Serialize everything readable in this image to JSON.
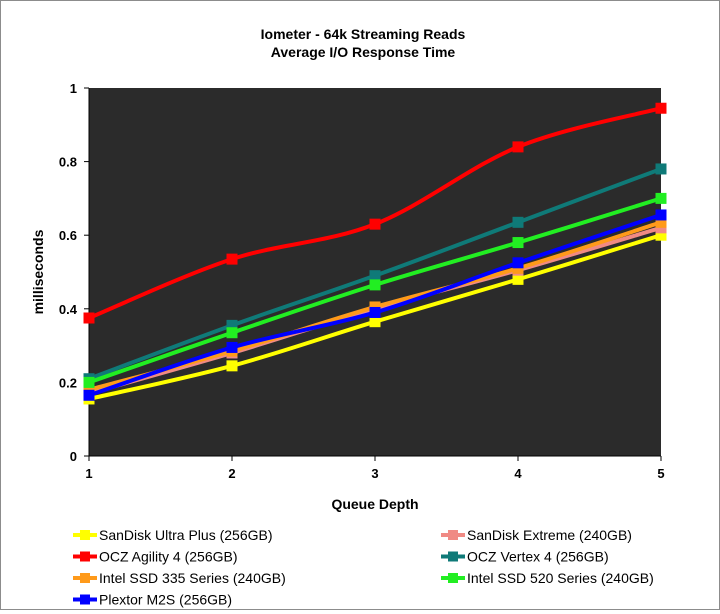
{
  "chart_data": {
    "type": "line",
    "title": [
      "Iometer - 64k  Streaming Reads",
      "Average I/O Response  Time"
    ],
    "xlabel": "Queue Depth",
    "ylabel": "milliseconds",
    "x": [
      1,
      2,
      3,
      4,
      5
    ],
    "x_ticks": [
      "1",
      "2",
      "3",
      "4",
      "5"
    ],
    "ylim": [
      0,
      1
    ],
    "y_ticks": [
      "0",
      "0.2",
      "0.4",
      "0.6",
      "0.8",
      "1"
    ],
    "plot_background": "#2b2b2b",
    "grid": false,
    "legend_position": "bottom",
    "series": [
      {
        "name": "SanDisk Ultra Plus (256GB)",
        "color": "#ffff00",
        "values": [
          0.155,
          0.245,
          0.365,
          0.48,
          0.6
        ]
      },
      {
        "name": "SanDisk Extreme (240GB)",
        "color": "#f08a84",
        "values": [
          0.17,
          0.28,
          0.4,
          0.505,
          0.62
        ]
      },
      {
        "name": "OCZ Agility 4 (256GB)",
        "color": "#ff0000",
        "values": [
          0.375,
          0.535,
          0.63,
          0.84,
          0.945
        ]
      },
      {
        "name": "OCZ Vertex 4 (256GB)",
        "color": "#0f7a78",
        "values": [
          0.21,
          0.355,
          0.49,
          0.635,
          0.78
        ]
      },
      {
        "name": "Intel SSD 335 Series (240GB)",
        "color": "#ff9a1a",
        "values": [
          0.18,
          0.285,
          0.405,
          0.51,
          0.635
        ]
      },
      {
        "name": "Intel SSD 520 Series (240GB)",
        "color": "#22ee22",
        "values": [
          0.2,
          0.335,
          0.465,
          0.58,
          0.7
        ]
      },
      {
        "name": "Plextor M2S (256GB)",
        "color": "#0000ff",
        "values": [
          0.165,
          0.295,
          0.39,
          0.525,
          0.655
        ]
      }
    ]
  }
}
